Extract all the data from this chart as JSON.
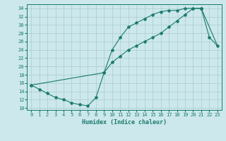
{
  "xlabel": "Humidex (Indice chaleur)",
  "bg_color": "#cce8ec",
  "line_color": "#1a7a6e",
  "grid_color": "#aacccc",
  "xlim": [
    -0.5,
    23.5
  ],
  "ylim": [
    9.5,
    35.0
  ],
  "xticks": [
    0,
    1,
    2,
    3,
    4,
    5,
    6,
    7,
    8,
    9,
    10,
    11,
    12,
    13,
    14,
    15,
    16,
    17,
    18,
    19,
    20,
    21,
    22,
    23
  ],
  "yticks": [
    10,
    12,
    14,
    16,
    18,
    20,
    22,
    24,
    26,
    28,
    30,
    32,
    34
  ],
  "curve1_x": [
    0,
    1,
    2,
    3,
    4,
    5,
    6,
    7,
    8,
    9,
    10,
    11,
    12,
    13,
    14,
    15,
    16,
    17,
    18,
    19,
    20,
    21
  ],
  "curve1_y": [
    15.5,
    14.5,
    13.5,
    12.5,
    12.0,
    11.2,
    10.8,
    10.5,
    12.5,
    18.5,
    24.0,
    27.0,
    29.5,
    30.5,
    31.5,
    32.5,
    33.2,
    33.5,
    33.5,
    34.0,
    34.0,
    34.0
  ],
  "curve2_x": [
    0,
    9,
    10,
    11,
    12,
    13,
    14,
    15,
    16,
    17,
    18,
    19,
    20,
    21
  ],
  "curve2_y": [
    15.5,
    18.5,
    21.0,
    22.5,
    24.0,
    25.0,
    26.0,
    27.0,
    28.0,
    29.5,
    31.0,
    32.5,
    34.0,
    34.0
  ],
  "curve3_x": [
    21,
    22,
    23
  ],
  "curve3_y": [
    34.0,
    27.0,
    25.0
  ],
  "curve4_x": [
    21,
    23
  ],
  "curve4_y": [
    34.0,
    25.0
  ]
}
